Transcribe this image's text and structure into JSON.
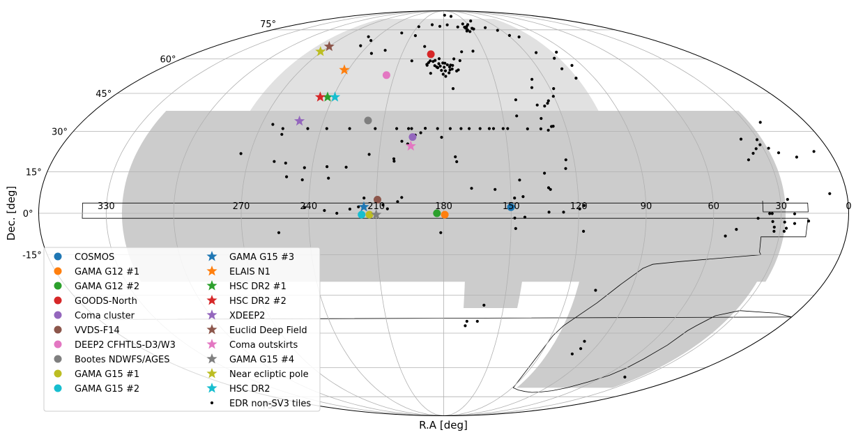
{
  "chart_data": {
    "type": "scatter",
    "projection": "mollweide",
    "xlabel": "R.A [deg]",
    "ylabel": "Dec. [deg]",
    "ra_tick_labels": [
      "270",
      "240",
      "210",
      "180",
      "150",
      "120",
      "90",
      "60",
      "30",
      "0",
      "330"
    ],
    "ra_ticks_deg": [
      270,
      240,
      210,
      180,
      150,
      120,
      90,
      60,
      30,
      0,
      330
    ],
    "dec_tick_labels": [
      "75°",
      "60°",
      "45°",
      "30°",
      "15°",
      "0°",
      "-15°",
      "-75°"
    ],
    "dec_ticks_deg": [
      75,
      60,
      45,
      30,
      15,
      0,
      -15,
      -75
    ],
    "ra_orientation": "decreasing to the right, 180 at centre",
    "grid": true,
    "legend_position": "lower-left",
    "colors": {
      "footprint": "#cccccc",
      "footprint_dense": "#e1e1e1",
      "grid": "#b0b0b0",
      "tiles": "#000000"
    },
    "series": [
      {
        "name": "COSMOS",
        "marker": "circle",
        "color": "#1f77b4",
        "points": [
          [
            150.1,
            2.2
          ]
        ]
      },
      {
        "name": "GAMA G12 #1",
        "marker": "circle",
        "color": "#ff7f0e",
        "points": [
          [
            179.5,
            -0.5
          ]
        ]
      },
      {
        "name": "GAMA G12 #2",
        "marker": "circle",
        "color": "#2ca02c",
        "points": [
          [
            183.0,
            0.0
          ]
        ]
      },
      {
        "name": "GOODS-North",
        "marker": "circle",
        "color": "#d62728",
        "points": [
          [
            189.2,
            62.2
          ]
        ]
      },
      {
        "name": "Coma cluster",
        "marker": "circle",
        "color": "#9467bd",
        "points": [
          [
            194.9,
            27.9
          ]
        ]
      },
      {
        "name": "VVDS-F14",
        "marker": "circle",
        "color": "#8c564b",
        "points": [
          [
            209.5,
            4.9
          ]
        ]
      },
      {
        "name": "DEEP2 CFHTLS-D3/W3",
        "marker": "circle",
        "color": "#e377c2",
        "points": [
          [
            214.8,
            52.7
          ]
        ]
      },
      {
        "name": "Bootes NDWFS/AGES",
        "marker": "circle",
        "color": "#7f7f7f",
        "points": [
          [
            217.8,
            34.2
          ]
        ]
      },
      {
        "name": "GAMA G15 #1",
        "marker": "circle",
        "color": "#bcbd22",
        "points": [
          [
            213.0,
            -0.5
          ]
        ]
      },
      {
        "name": "GAMA G15 #2",
        "marker": "circle",
        "color": "#17becf",
        "points": [
          [
            216.5,
            -0.5
          ]
        ]
      },
      {
        "name": "GAMA G15 #3",
        "marker": "star",
        "color": "#1f77b4",
        "points": [
          [
            215.5,
            2.3
          ]
        ]
      },
      {
        "name": "ELAIS N1",
        "marker": "star",
        "color": "#ff7f0e",
        "points": [
          [
            242.5,
            55.0
          ]
        ]
      },
      {
        "name": "HSC DR2 #1",
        "marker": "star",
        "color": "#2ca02c",
        "points": [
          [
            243.0,
            43.5
          ]
        ]
      },
      {
        "name": "HSC DR2 #2",
        "marker": "star",
        "color": "#d62728",
        "points": [
          [
            247.0,
            43.5
          ]
        ]
      },
      {
        "name": "XDEEP2",
        "marker": "star",
        "color": "#9467bd",
        "points": [
          [
            252.0,
            34.0
          ]
        ]
      },
      {
        "name": "Euclid Deep Field",
        "marker": "star",
        "color": "#8c564b",
        "points": [
          [
            269.7,
            66.0
          ]
        ]
      },
      {
        "name": "Coma outskirts",
        "marker": "star",
        "color": "#e377c2",
        "points": [
          [
            195.5,
            24.5
          ]
        ]
      },
      {
        "name": "GAMA G15 #4",
        "marker": "star",
        "color": "#7f7f7f",
        "points": [
          [
            210.0,
            -0.5
          ]
        ]
      },
      {
        "name": "Near ecliptic pole",
        "marker": "star",
        "color": "#bcbd22",
        "points": [
          [
            271.0,
            63.5
          ]
        ]
      },
      {
        "name": "HSC DR2",
        "marker": "star",
        "color": "#17becf",
        "points": [
          [
            239.0,
            43.5
          ]
        ]
      },
      {
        "name": "EDR non-SV3 tiles",
        "marker": "dot",
        "color": "#000000",
        "points": [
          [
            120.3,
            43.8
          ],
          [
            118.0,
            47.0
          ],
          [
            124.0,
            42.0
          ],
          [
            125.0,
            41.0
          ],
          [
            130.8,
            40.3
          ],
          [
            130.0,
            47.4
          ],
          [
            127.7,
            50.9
          ],
          [
            127.1,
            39.9
          ],
          [
            141.3,
            42.4
          ],
          [
            143.0,
            36.0
          ],
          [
            139.0,
            31.0
          ],
          [
            132.5,
            31.0
          ],
          [
            131.0,
            35.0
          ],
          [
            129.0,
            30.5
          ],
          [
            127.0,
            31.9
          ],
          [
            126.1,
            32.0
          ],
          [
            148.7,
            31.1
          ],
          [
            150.9,
            31.1
          ],
          [
            155.6,
            31.1
          ],
          [
            157.7,
            31.1
          ],
          [
            162.2,
            31.1
          ],
          [
            167.5,
            31.1
          ],
          [
            171.5,
            31.1
          ],
          [
            176.8,
            31.1
          ],
          [
            183.0,
            31.1
          ],
          [
            189.0,
            31.2
          ],
          [
            195.7,
            31.1
          ],
          [
            197.2,
            31.1
          ],
          [
            203.0,
            31.1
          ],
          [
            213.5,
            31.1
          ],
          [
            226.0,
            31.1
          ],
          [
            237.2,
            31.1
          ],
          [
            246.5,
            31.1
          ],
          [
            258.7,
            31.1
          ],
          [
            264.5,
            32.7
          ],
          [
            258.1,
            28.9
          ],
          [
            274.3,
            21.7
          ],
          [
            257.9,
            18.8
          ],
          [
            233.3,
            16.9
          ],
          [
            243.5,
            16.5
          ],
          [
            224.5,
            16.7
          ],
          [
            214.6,
            21.4
          ],
          [
            202.8,
            18.9
          ],
          [
            203.0,
            19.8
          ],
          [
            199.9,
            26.3
          ],
          [
            197.0,
            25.3
          ],
          [
            193.7,
            28.6
          ],
          [
            191.1,
            29.5
          ],
          [
            181.0,
            27.8
          ],
          [
            174.6,
            20.5
          ],
          [
            157.0,
            8.6
          ],
          [
            148.4,
            5.5
          ],
          [
            144.6,
            6.0
          ],
          [
            132.2,
            8.6
          ],
          [
            143.9,
            -1.4
          ],
          [
            148.4,
            -1.7
          ],
          [
            167.5,
            9.0
          ],
          [
            174.0,
            18.7
          ],
          [
            145.8,
            12.0
          ],
          [
            133.2,
            0.4
          ],
          [
            126.7,
            0.4
          ],
          [
            119.5,
            1.6
          ],
          [
            117.5,
            2.8
          ],
          [
            117.6,
            -6.5
          ],
          [
            123.7,
            19.4
          ],
          [
            124.4,
            16.2
          ],
          [
            134.3,
            14.5
          ],
          [
            133.0,
            9.2
          ],
          [
            147.9,
            -5.5
          ],
          [
            181.3,
            -7.0
          ],
          [
            207.0,
            3.0
          ],
          [
            205.0,
            1.6
          ],
          [
            200.5,
            4.2
          ],
          [
            198.7,
            5.7
          ],
          [
            215.5,
            5.5
          ],
          [
            217.9,
            2.3
          ],
          [
            221.7,
            1.5
          ],
          [
            227.5,
            0.0
          ],
          [
            233.0,
            1.0
          ],
          [
            241.8,
            2.1
          ],
          [
            253.6,
            -7.0
          ],
          [
            232.0,
            12.7
          ],
          [
            251.0,
            13.2
          ],
          [
            252.5,
            18.2
          ],
          [
            243.7,
            12.1
          ],
          [
            168.5,
            -42.0
          ],
          [
            167.8,
            -40.2
          ],
          [
            162.3,
            -40.2
          ],
          [
            159.9,
            -33.9
          ],
          [
            107.0,
            -28.2
          ],
          [
            100.6,
            -53.8
          ],
          [
            99.2,
            -48.4
          ],
          [
            98.1,
            -51.5
          ],
          [
            43.1,
            -64.5
          ],
          [
            54.0,
            -8.2
          ],
          [
            49.5,
            -5.8
          ],
          [
            40.2,
            -1.8
          ],
          [
            35.1,
            -0.1
          ],
          [
            34.0,
            -0.1
          ],
          [
            33.6,
            -3.0
          ],
          [
            32.7,
            -5.0
          ],
          [
            32.6,
            -6.5
          ],
          [
            28.3,
            -3.2
          ],
          [
            28.1,
            -6.5
          ],
          [
            27.3,
            -5.4
          ],
          [
            23.8,
            -3.7
          ],
          [
            17.7,
            -2.8
          ],
          [
            39.5,
            19.4
          ],
          [
            36.0,
            21.8
          ],
          [
            33.5,
            23.5
          ],
          [
            30.6,
            25.0
          ],
          [
            24.0,
            22.0
          ],
          [
            38.0,
            27.1
          ],
          [
            30.5,
            26.9
          ],
          [
            27.5,
            23.7
          ],
          [
            22.5,
            33.5
          ],
          [
            24.0,
            -0.2
          ],
          [
            7.6,
            7.1
          ],
          [
            7.2,
            22.5
          ],
          [
            16.7,
            20.4
          ],
          [
            26.8,
            5.0
          ],
          [
            158.3,
            63.7
          ],
          [
            166.8,
            63.4
          ],
          [
            169.0,
            59.2
          ],
          [
            170.8,
            55.0
          ],
          [
            174.7,
            47.0
          ],
          [
            188.0,
            53.5
          ],
          [
            183.2,
            57.8
          ],
          [
            190.8,
            57.1
          ],
          [
            194.9,
            66.0
          ],
          [
            201.5,
            59.1
          ],
          [
            206.2,
            71.7
          ],
          [
            223.8,
            64.1
          ],
          [
            232.3,
            62.6
          ],
          [
            245.8,
            66.4
          ],
          [
            242.1,
            69.1
          ],
          [
            248.3,
            71.1
          ],
          [
            221.0,
            73.2
          ],
          [
            208.5,
            76.9
          ],
          [
            194.0,
            78.1
          ],
          [
            184.4,
            77.1
          ],
          [
            175.7,
            78.0
          ],
          [
            164.0,
            76.7
          ],
          [
            156.2,
            78.6
          ],
          [
            150.5,
            78.2
          ],
          [
            141.7,
            80.6
          ],
          [
            147.8,
            75.5
          ],
          [
            133.8,
            76.3
          ],
          [
            124.1,
            74.7
          ],
          [
            118.8,
            71.8
          ],
          [
            111.8,
            71.0
          ],
          [
            112.5,
            63.0
          ],
          [
            103.6,
            60.3
          ],
          [
            97.3,
            63.2
          ],
          [
            96.6,
            57.0
          ],
          [
            101.0,
            51.4
          ],
          [
            105.0,
            55.5
          ],
          [
            149.0,
            75.9
          ],
          [
            166.1,
            84.0
          ],
          [
            178.1,
            85.0
          ],
          [
            183.1,
            60.1
          ],
          [
            185.8,
            59.3
          ],
          [
            187.1,
            58.8
          ],
          [
            189.1,
            59.1
          ],
          [
            190.0,
            58.3
          ],
          [
            191.0,
            57.5
          ],
          [
            185.8,
            56.9
          ],
          [
            183.8,
            56.0
          ],
          [
            184.5,
            56.3
          ],
          [
            182.2,
            56.7
          ],
          [
            180.6,
            58.1
          ],
          [
            179.2,
            58.0
          ],
          [
            177.6,
            57.3
          ],
          [
            179.7,
            56.2
          ],
          [
            181.4,
            54.8
          ],
          [
            176.0,
            55.0
          ],
          [
            178.9,
            54.6
          ],
          [
            180.3,
            53.1
          ],
          [
            178.8,
            52.2
          ],
          [
            176.7,
            53.7
          ],
          [
            175.5,
            57.2
          ],
          [
            174.6,
            55.4
          ],
          [
            174.2,
            57.0
          ],
          [
            176.2,
            56.3
          ],
          [
            171.9,
            54.5
          ],
          [
            173.0,
            60.0
          ],
          [
            156.3,
            74.3
          ],
          [
            155.0,
            74.9
          ],
          [
            154.8,
            76.3
          ],
          [
            153.3,
            77.1
          ],
          [
            155.8,
            76.0
          ],
          [
            156.5,
            76.6
          ],
          [
            153.5,
            74.0
          ]
        ]
      }
    ],
    "footprint_regions": [
      {
        "name": "north-galactic-cap",
        "ra": [
          279.7,
          100.3
        ],
        "dec": [
          -2.5,
          82.0
        ],
        "dense_above_dec": 31.0
      },
      {
        "name": "south-galactic-cap",
        "ra": [
          28.0,
          -37.0
        ],
        "dec": [
          -25.0,
          38.0
        ]
      },
      {
        "name": "south-galactic-cap-tail",
        "ra": [
          32.0,
          116.0
        ],
        "dec": [
          -70.0,
          -5.0
        ]
      },
      {
        "name": "southern-spur",
        "ra": [
          170.0,
          143.0
        ],
        "dec": [
          -35.0,
          -15.0
        ]
      }
    ],
    "outlined_footprint": {
      "ra": [
        38.0,
        38.0,
        18.0,
        18.0,
        -19.3,
        -19.3,
        18.0,
        18.0,
        38.0,
        37.0,
        36.0,
        50.0,
        72.0,
        84.0,
        88.0,
        96.0,
        104.0,
        116.0,
        119.0,
        119.0,
        112.0,
        104.0,
        96.0,
        88.0,
        80.0,
        72.0,
        64.0,
        57.0,
        54.0,
        52.0,
        49.0,
        47.0,
        45.0,
        40.0,
        30.0,
        10.0,
        0.0,
        -2.0
      ],
      "dec": [
        4.5,
        0.5,
        0.5,
        3.7,
        3.7,
        -1.8,
        -1.8,
        -8.5,
        -8.5,
        -14.0,
        -15.0,
        -16.0,
        -17.5,
        -18.5,
        -20.0,
        -26.0,
        -33.0,
        -42.0,
        -46.0,
        -70.0,
        -71.2,
        -72.0,
        -72.5,
        -72.3,
        -71.6,
        -70.0,
        -67.0,
        -63.6,
        -60.0,
        -56.0,
        -50.0,
        -44.0,
        -42.0,
        -38.0,
        -36.0,
        -37.0,
        -38.5,
        -39.5
      ]
    }
  }
}
